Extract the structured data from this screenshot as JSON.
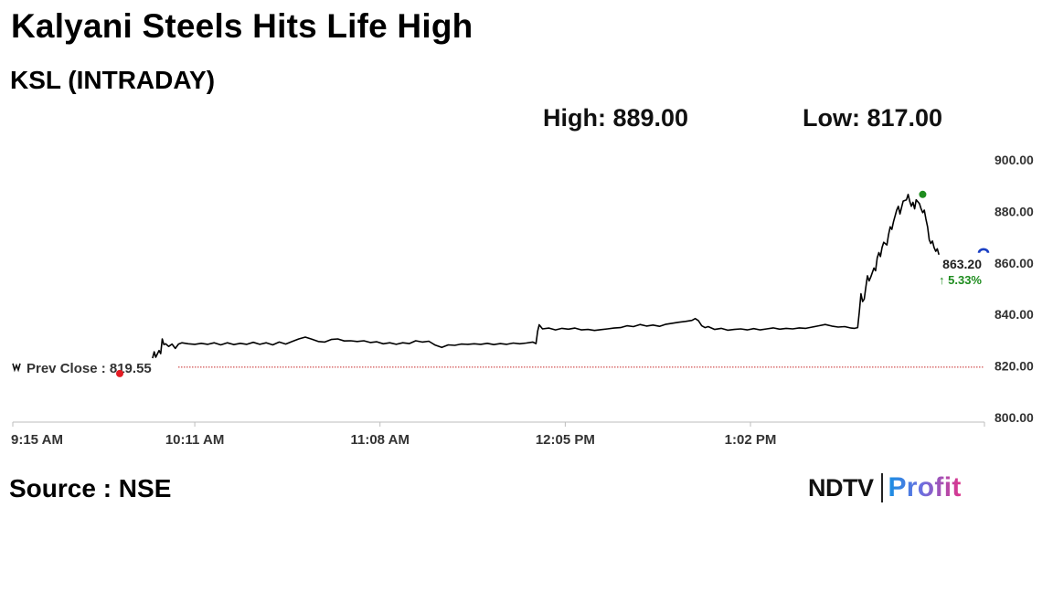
{
  "title": "Kalyani Steels Hits Life High",
  "subtitle": "KSL (INTRADAY)",
  "stats": {
    "high": "High: 889.00",
    "low": "Low: 817.00"
  },
  "source": "Source : NSE",
  "logo": {
    "brand": "NDTV",
    "product": "Profit"
  },
  "chart_data": {
    "type": "line",
    "title": "",
    "xlabel": "",
    "ylabel": "",
    "ylim": [
      800,
      900
    ],
    "y_ticks": [
      "900.00",
      "880.00",
      "860.00",
      "840.00",
      "820.00",
      "800.00"
    ],
    "x_ticks": [
      "9:15 AM",
      "10:11 AM",
      "11:08 AM",
      "12:05 PM",
      "1:02 PM"
    ],
    "x_range_minutes": [
      0,
      299
    ],
    "x_tick_minutes": [
      0,
      56,
      113,
      170,
      227
    ],
    "prev_close": {
      "label": "Prev Close : 819.55",
      "value": 819.55
    },
    "last": {
      "value": 863.2,
      "label": "863.20",
      "change": "↑ 5.33%"
    },
    "high_marker": {
      "minutes": 280,
      "value": 886.6
    },
    "grid": false,
    "colors": {
      "line": "#000000",
      "prev_close": "#c62828",
      "high": "#1e8c1e",
      "change": "#1e8c1e",
      "dot_red": "#e41b23",
      "axis": "#bdbdbd",
      "last_marker": "#1a3fc4"
    },
    "series": [
      {
        "values": [
          [
            43,
            823.0
          ],
          [
            43.5,
            825.5
          ],
          [
            44,
            823.4
          ],
          [
            45,
            826.0
          ],
          [
            45.5,
            824.8
          ],
          [
            46,
            830.5
          ],
          [
            46.5,
            828.3
          ],
          [
            47,
            828.6
          ],
          [
            48,
            827.6
          ],
          [
            49,
            828.5
          ],
          [
            50,
            826.8
          ],
          [
            51,
            828.5
          ],
          [
            52,
            829.0
          ],
          [
            54,
            828.6
          ],
          [
            56,
            828.4
          ],
          [
            58,
            828.8
          ],
          [
            60,
            828.4
          ],
          [
            62,
            829.0
          ],
          [
            64,
            828.2
          ],
          [
            66,
            829.0
          ],
          [
            68,
            828.3
          ],
          [
            70,
            828.8
          ],
          [
            72,
            828.4
          ],
          [
            74,
            829.2
          ],
          [
            76,
            828.4
          ],
          [
            78,
            829.0
          ],
          [
            80,
            828.2
          ],
          [
            82,
            829.3
          ],
          [
            84,
            828.5
          ],
          [
            86,
            829.5
          ],
          [
            88,
            830.5
          ],
          [
            90,
            831.2
          ],
          [
            92,
            830.4
          ],
          [
            94,
            829.5
          ],
          [
            96,
            829.3
          ],
          [
            98,
            830.3
          ],
          [
            100,
            830.5
          ],
          [
            102,
            829.7
          ],
          [
            104,
            829.8
          ],
          [
            106,
            829.5
          ],
          [
            108,
            829.8
          ],
          [
            110,
            829.1
          ],
          [
            112,
            829.4
          ],
          [
            114,
            828.6
          ],
          [
            116,
            829.0
          ],
          [
            118,
            828.4
          ],
          [
            120,
            829.0
          ],
          [
            122,
            828.7
          ],
          [
            124,
            829.8
          ],
          [
            126,
            829.3
          ],
          [
            128,
            829.6
          ],
          [
            130,
            828.1
          ],
          [
            132,
            827.2
          ],
          [
            134,
            828.2
          ],
          [
            136,
            828.0
          ],
          [
            138,
            828.5
          ],
          [
            140,
            828.4
          ],
          [
            142,
            828.6
          ],
          [
            144,
            828.4
          ],
          [
            146,
            828.8
          ],
          [
            148,
            828.3
          ],
          [
            150,
            828.7
          ],
          [
            152,
            828.4
          ],
          [
            154,
            828.9
          ],
          [
            156,
            828.6
          ],
          [
            158,
            828.9
          ],
          [
            160,
            829.3
          ],
          [
            161,
            828.7
          ],
          [
            161.5,
            833.5
          ],
          [
            162,
            836.0
          ],
          [
            163,
            834.4
          ],
          [
            165,
            834.7
          ],
          [
            167,
            834.0
          ],
          [
            169,
            834.6
          ],
          [
            171,
            834.3
          ],
          [
            173,
            834.7
          ],
          [
            175,
            834.0
          ],
          [
            177,
            834.2
          ],
          [
            179,
            833.8
          ],
          [
            181,
            834.1
          ],
          [
            183,
            834.4
          ],
          [
            185,
            834.7
          ],
          [
            187,
            834.9
          ],
          [
            189,
            835.6
          ],
          [
            191,
            835.3
          ],
          [
            193,
            836.1
          ],
          [
            195,
            835.5
          ],
          [
            197,
            835.9
          ],
          [
            199,
            835.4
          ],
          [
            201,
            836.2
          ],
          [
            203,
            836.6
          ],
          [
            205,
            837.0
          ],
          [
            207,
            837.3
          ],
          [
            209,
            837.7
          ],
          [
            210,
            838.4
          ],
          [
            211,
            837.6
          ],
          [
            212,
            835.6
          ],
          [
            213,
            834.9
          ],
          [
            214,
            835.3
          ],
          [
            216,
            834.2
          ],
          [
            218,
            834.6
          ],
          [
            220,
            833.9
          ],
          [
            222,
            834.2
          ],
          [
            224,
            834.4
          ],
          [
            226,
            834.0
          ],
          [
            228,
            834.5
          ],
          [
            230,
            834.0
          ],
          [
            232,
            834.4
          ],
          [
            234,
            834.8
          ],
          [
            236,
            834.3
          ],
          [
            238,
            834.6
          ],
          [
            240,
            834.4
          ],
          [
            242,
            834.8
          ],
          [
            244,
            834.6
          ],
          [
            246,
            835.1
          ],
          [
            248,
            835.6
          ],
          [
            250,
            836.1
          ],
          [
            252,
            835.5
          ],
          [
            254,
            835.1
          ],
          [
            256,
            835.3
          ],
          [
            258,
            834.7
          ],
          [
            259,
            834.6
          ],
          [
            260,
            834.9
          ],
          [
            260.5,
            841.0
          ],
          [
            261,
            848.0
          ],
          [
            261.5,
            845.0
          ],
          [
            262,
            846.0
          ],
          [
            262.5,
            850.5
          ],
          [
            263,
            855.0
          ],
          [
            263.5,
            853.0
          ],
          [
            264,
            854.5
          ],
          [
            265,
            858.0
          ],
          [
            265.5,
            857.0
          ],
          [
            266,
            862.0
          ],
          [
            266.5,
            864.0
          ],
          [
            267,
            862.5
          ],
          [
            267.5,
            866.0
          ],
          [
            268,
            868.0
          ],
          [
            269,
            867.0
          ],
          [
            269.5,
            871.0
          ],
          [
            270,
            874.0
          ],
          [
            270.5,
            873.0
          ],
          [
            271,
            876.0
          ],
          [
            272,
            880.5
          ],
          [
            272.5,
            882.0
          ],
          [
            273,
            879.0
          ],
          [
            273.5,
            881.5
          ],
          [
            274,
            884.0
          ],
          [
            275,
            884.5
          ],
          [
            275.5,
            886.6
          ],
          [
            276,
            884.0
          ],
          [
            276.5,
            882.0
          ],
          [
            277,
            883.5
          ],
          [
            277.5,
            881.0
          ],
          [
            278,
            884.5
          ],
          [
            279,
            883.0
          ],
          [
            279.5,
            881.0
          ],
          [
            280,
            879.5
          ],
          [
            280.5,
            880.5
          ],
          [
            281,
            877.0
          ],
          [
            281.5,
            874.0
          ],
          [
            282,
            869.0
          ],
          [
            282.5,
            867.5
          ],
          [
            283,
            868.5
          ],
          [
            283.5,
            866.0
          ],
          [
            284,
            864.5
          ],
          [
            284.5,
            865.5
          ],
          [
            285,
            863.2
          ]
        ]
      }
    ]
  }
}
